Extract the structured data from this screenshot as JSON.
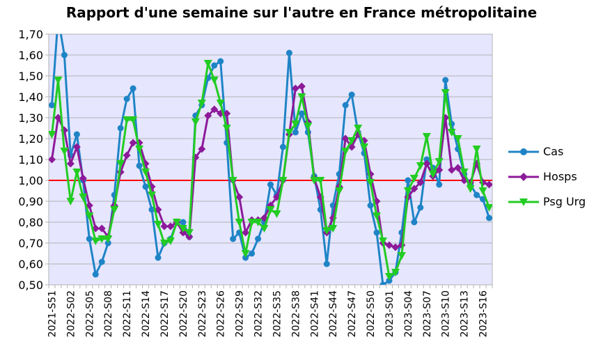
{
  "chart_data": {
    "type": "line",
    "title": "Rapport d'une semaine sur l'autre en France métropolitaine",
    "xlabel": "",
    "ylabel": "",
    "ylim": [
      0.5,
      1.7
    ],
    "y_ticks": [
      "0,50",
      "0,60",
      "0,70",
      "0,80",
      "0,90",
      "1,00",
      "1,10",
      "1,20",
      "1,30",
      "1,40",
      "1,50",
      "1,60",
      "1,70"
    ],
    "x": [
      "2021-S51",
      "2021-S52",
      "2022-S01",
      "2022-S02",
      "2022-S03",
      "2022-S04",
      "2022-S05",
      "2022-S06",
      "2022-S07",
      "2022-S08",
      "2022-S09",
      "2022-S10",
      "2022-S11",
      "2022-S12",
      "2022-S13",
      "2022-S14",
      "2022-S15",
      "2022-S16",
      "2022-S17",
      "2022-S18",
      "2022-S19",
      "2022-S20",
      "2022-S21",
      "2022-S22",
      "2022-S23",
      "2022-S24",
      "2022-S25",
      "2022-S26",
      "2022-S27",
      "2022-S28",
      "2022-S29",
      "2022-S30",
      "2022-S31",
      "2022-S32",
      "2022-S33",
      "2022-S34",
      "2022-S35",
      "2022-S36",
      "2022-S37",
      "2022-S38",
      "2022-S39",
      "2022-S40",
      "2022-S41",
      "2022-S42",
      "2022-S43",
      "2022-S44",
      "2022-S45",
      "2022-S46",
      "2022-S47",
      "2022-S48",
      "2022-S49",
      "2022-S50",
      "2022-S51",
      "2022-S52",
      "2023-S01",
      "2023-S02",
      "2023-S03",
      "2023-S04",
      "2023-S05",
      "2023-S06",
      "2023-S07",
      "2023-S08",
      "2023-S09",
      "2023-S10",
      "2023-S11",
      "2023-S12",
      "2023-S13",
      "2023-S14",
      "2023-S15",
      "2023-S16",
      "2023-S17"
    ],
    "x_tick_labels": [
      "2021-S51",
      "2022-S02",
      "2022-S05",
      "2022-S08",
      "2022-S11",
      "2022-S14",
      "2022-S17",
      "2022-S20",
      "2022-S23",
      "2022-S26",
      "2022-S29",
      "2022-S32",
      "2022-S35",
      "2022-S38",
      "2022-S41",
      "2022-S44",
      "2022-S47",
      "2022-S50",
      "2023-S01",
      "2023-S04",
      "2023-S07",
      "2023-S10",
      "2023-S13",
      "2023-S16"
    ],
    "reference_line": {
      "value": 1.0,
      "color": "#ff0000"
    },
    "grid": "horizontal",
    "legend_position": "right",
    "plot_background": "#e6e6ff",
    "series": [
      {
        "name": "Cas",
        "color": "#1f84c6",
        "marker": "circle",
        "values": [
          1.36,
          1.78,
          1.6,
          1.12,
          1.22,
          1.0,
          0.72,
          0.55,
          0.61,
          0.7,
          0.93,
          1.25,
          1.39,
          1.44,
          1.07,
          0.97,
          0.86,
          0.63,
          0.7,
          0.72,
          0.8,
          0.8,
          0.73,
          1.31,
          1.36,
          1.49,
          1.55,
          1.57,
          1.18,
          0.72,
          0.75,
          0.63,
          0.65,
          0.72,
          0.8,
          0.98,
          0.93,
          1.16,
          1.61,
          1.23,
          1.32,
          1.23,
          1.02,
          0.86,
          0.6,
          0.88,
          1.03,
          1.36,
          1.41,
          1.23,
          1.13,
          0.88,
          0.75,
          0.5,
          0.52,
          0.56,
          0.75,
          1.0,
          0.8,
          0.87,
          1.1,
          1.06,
          0.98,
          1.48,
          1.27,
          1.15,
          1.03,
          0.98,
          0.93,
          0.91,
          0.82
        ]
      },
      {
        "name": "Hosps",
        "color": "#8c1a99",
        "marker": "diamond",
        "values": [
          1.1,
          1.3,
          1.24,
          1.08,
          1.16,
          1.01,
          0.88,
          0.77,
          0.77,
          0.73,
          0.88,
          1.04,
          1.12,
          1.18,
          1.18,
          1.08,
          0.97,
          0.86,
          0.78,
          0.78,
          0.8,
          0.75,
          0.73,
          1.11,
          1.15,
          1.31,
          1.34,
          1.32,
          1.32,
          1.0,
          0.92,
          0.75,
          0.81,
          0.81,
          0.82,
          0.88,
          0.92,
          1.0,
          1.22,
          1.44,
          1.45,
          1.28,
          1.01,
          0.92,
          0.75,
          0.82,
          0.97,
          1.2,
          1.16,
          1.22,
          1.19,
          1.03,
          0.9,
          0.7,
          0.69,
          0.68,
          0.69,
          0.92,
          0.96,
          0.99,
          1.08,
          1.02,
          1.05,
          1.3,
          1.05,
          1.06,
          1.0,
          0.99,
          1.08,
          0.99,
          0.98
        ]
      },
      {
        "name": "Psg Urg",
        "color": "#22cc22",
        "marker": "triangle-down",
        "values": [
          1.22,
          1.48,
          1.14,
          0.9,
          1.04,
          0.92,
          0.83,
          0.71,
          0.72,
          0.72,
          0.86,
          1.08,
          1.29,
          1.29,
          1.15,
          1.04,
          0.93,
          0.79,
          0.7,
          0.71,
          0.8,
          0.77,
          0.75,
          1.28,
          1.37,
          1.56,
          1.48,
          1.37,
          1.25,
          1.0,
          0.8,
          0.65,
          0.8,
          0.8,
          0.77,
          0.86,
          0.84,
          1.0,
          1.23,
          1.27,
          1.4,
          1.26,
          1.0,
          1.0,
          0.76,
          0.77,
          0.95,
          1.14,
          1.19,
          1.25,
          1.16,
          0.99,
          0.83,
          0.71,
          0.54,
          0.56,
          0.64,
          0.95,
          1.01,
          1.07,
          1.21,
          1.03,
          1.09,
          1.42,
          1.23,
          1.2,
          1.04,
          0.96,
          1.15,
          0.95,
          0.87
        ]
      }
    ]
  }
}
